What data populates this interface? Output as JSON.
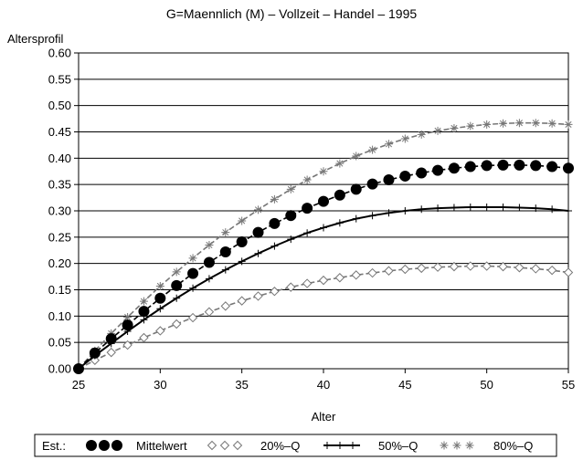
{
  "chart_data": {
    "type": "line",
    "title": "G=Maennlich  (M)  –  Vollzeit  –  Handel  –  1995",
    "xlabel": "Alter",
    "ylabel": "Altersprofil",
    "xlim": [
      25,
      55
    ],
    "ylim": [
      0,
      0.6
    ],
    "x_ticks": [
      25,
      30,
      35,
      40,
      45,
      50,
      55
    ],
    "y_ticks": [
      0.0,
      0.05,
      0.1,
      0.15,
      0.2,
      0.25,
      0.3,
      0.35,
      0.4,
      0.45,
      0.5,
      0.55,
      0.6
    ],
    "y_tick_labels": [
      "0.00",
      "0.05",
      "0.10",
      "0.15",
      "0.20",
      "0.25",
      "0.30",
      "0.35",
      "0.40",
      "0.45",
      "0.50",
      "0.55",
      "0.60"
    ],
    "grid": "horizontal",
    "legend_prefix": "Est.:",
    "legend_position": "bottom",
    "x": [
      25,
      26,
      27,
      28,
      29,
      30,
      31,
      32,
      33,
      34,
      35,
      36,
      37,
      38,
      39,
      40,
      41,
      42,
      43,
      44,
      45,
      46,
      47,
      48,
      49,
      50,
      51,
      52,
      53,
      54,
      55
    ],
    "series": [
      {
        "name": "Mittelwert",
        "marker": "filled-circle",
        "line": "dashed",
        "color": "#000000",
        "values": [
          0.0,
          0.03,
          0.057,
          0.083,
          0.109,
          0.134,
          0.158,
          0.181,
          0.202,
          0.222,
          0.241,
          0.259,
          0.276,
          0.291,
          0.305,
          0.318,
          0.33,
          0.341,
          0.351,
          0.359,
          0.366,
          0.372,
          0.377,
          0.381,
          0.384,
          0.386,
          0.387,
          0.387,
          0.386,
          0.384,
          0.381
        ]
      },
      {
        "name": "20%–Q",
        "marker": "diamond",
        "line": "dashed",
        "color": "#777777",
        "values": [
          0.0,
          0.016,
          0.031,
          0.045,
          0.059,
          0.072,
          0.085,
          0.097,
          0.108,
          0.119,
          0.129,
          0.138,
          0.147,
          0.155,
          0.162,
          0.168,
          0.173,
          0.178,
          0.182,
          0.186,
          0.189,
          0.191,
          0.193,
          0.194,
          0.195,
          0.195,
          0.194,
          0.192,
          0.19,
          0.187,
          0.183
        ]
      },
      {
        "name": "50%–Q",
        "marker": "plus",
        "line": "solid",
        "color": "#000000",
        "values": [
          0.0,
          0.025,
          0.048,
          0.071,
          0.093,
          0.114,
          0.134,
          0.153,
          0.171,
          0.188,
          0.204,
          0.219,
          0.233,
          0.246,
          0.258,
          0.268,
          0.277,
          0.285,
          0.291,
          0.296,
          0.3,
          0.303,
          0.305,
          0.306,
          0.307,
          0.307,
          0.307,
          0.306,
          0.305,
          0.303,
          0.3
        ]
      },
      {
        "name": "80%–Q",
        "marker": "asterisk",
        "line": "dashed",
        "color": "#777777",
        "values": [
          0.0,
          0.034,
          0.067,
          0.098,
          0.128,
          0.157,
          0.184,
          0.21,
          0.235,
          0.259,
          0.281,
          0.302,
          0.322,
          0.341,
          0.359,
          0.375,
          0.39,
          0.404,
          0.416,
          0.427,
          0.437,
          0.445,
          0.452,
          0.457,
          0.461,
          0.464,
          0.466,
          0.467,
          0.467,
          0.466,
          0.464
        ]
      }
    ]
  }
}
